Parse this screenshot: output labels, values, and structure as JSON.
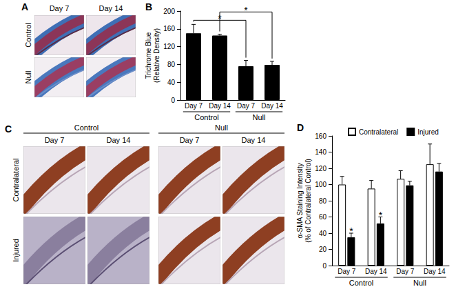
{
  "image_panels": [
    {
      "label": "A",
      "columns": [
        "Day 7",
        "Day 14"
      ],
      "rows": [
        "Control",
        "Null"
      ]
    },
    {
      "label": "C",
      "column_groups": [
        "Control",
        "Null"
      ],
      "columns": [
        "Day 7",
        "Day 14",
        "Day 7",
        "Day 14"
      ],
      "rows": [
        "Contralateral",
        "Injured"
      ]
    }
  ],
  "chart_data": [
    {
      "type": "bar",
      "title": "B",
      "categories": [
        "Day 7",
        "Day 14",
        "Day 7",
        "Day 14"
      ],
      "group_labels": [
        "Control",
        "Null"
      ],
      "ylabel": [
        "Trichrome Blue",
        "(Relative Density)"
      ],
      "values": [
        150,
        145,
        76,
        79
      ],
      "errors": [
        20,
        3,
        13,
        8
      ],
      "color": "#000000",
      "ylim": [
        0,
        200
      ],
      "yticks": [
        0,
        40,
        80,
        120,
        160,
        200
      ],
      "grid": false,
      "annotations": [
        {
          "text": "*",
          "from": 0,
          "to": 2
        },
        {
          "text": "*",
          "from": 1,
          "to": 3
        }
      ]
    },
    {
      "type": "bar",
      "title": "D",
      "categories": [
        "Day 7",
        "Day 14",
        "Day 7",
        "Day 14"
      ],
      "group_labels": [
        "Control",
        "Null"
      ],
      "ylabel": [
        "α-SMA Staining Intensity",
        "(% of Contralateral Control)"
      ],
      "series": [
        {
          "name": "Contralateral",
          "color": "#ffffff",
          "values": [
            100,
            95,
            107,
            125
          ],
          "errors": [
            10,
            10,
            10,
            25
          ]
        },
        {
          "name": "Injured",
          "color": "#000000",
          "values": [
            35,
            52,
            99,
            116
          ],
          "errors": [
            5,
            8,
            5,
            10
          ]
        }
      ],
      "ylim": [
        0,
        160
      ],
      "yticks": [
        0,
        20,
        40,
        60,
        80,
        100,
        120,
        140,
        160
      ],
      "grid": false,
      "legend": "top",
      "annotations": [
        {
          "text": "*",
          "series": "Injured",
          "category": 0
        },
        {
          "text": "*",
          "series": "Injured",
          "category": 1
        }
      ]
    }
  ]
}
